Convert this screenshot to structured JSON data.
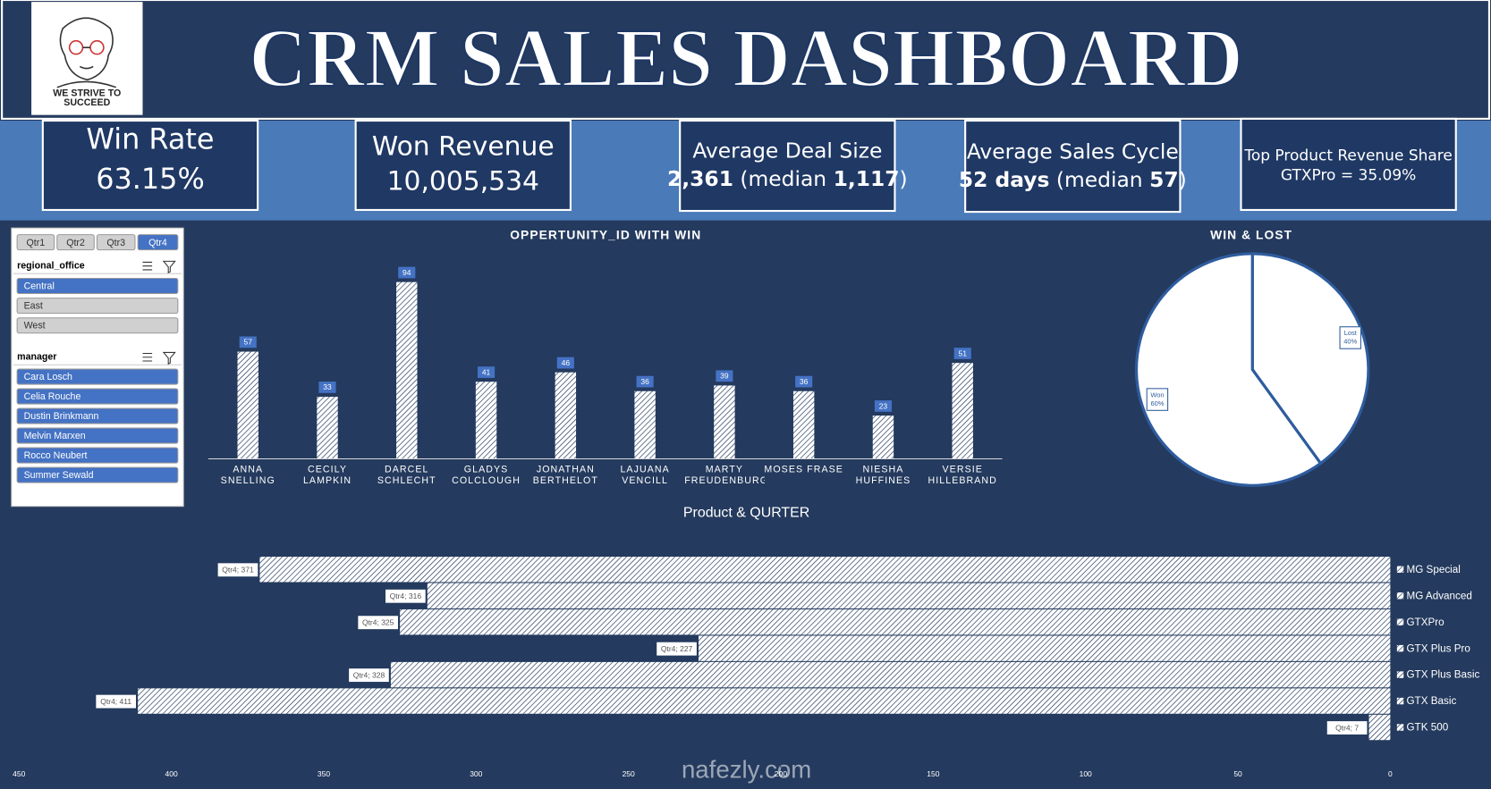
{
  "header": {
    "title": "CRM SALES DASHBOARD",
    "logo_text": "WE STRIVE TO SUCCEED"
  },
  "kpis": [
    {
      "label": "Win Rate",
      "value": "63.15%"
    },
    {
      "label": "Won Revenue",
      "value": "10,005,534"
    },
    {
      "label": "Average Deal Size",
      "value_parts": [
        "2,361",
        " (median ",
        "1,117",
        ")"
      ]
    },
    {
      "label": "Average Sales Cycle",
      "value_parts": [
        "52 days",
        " (median ",
        "57",
        ")"
      ]
    },
    {
      "label": "Top Product Revenue Share",
      "value": "GTXPro = 35.09%"
    }
  ],
  "slicers": {
    "quarters": {
      "items": [
        "Qtr1",
        "Qtr2",
        "Qtr3",
        "Qtr4"
      ],
      "selected": [
        3
      ]
    },
    "regional_office": {
      "title": "regional_office",
      "items": [
        "Central",
        "East",
        "West"
      ],
      "selected": [
        0
      ]
    },
    "manager": {
      "title": "manager",
      "items": [
        "Cara Losch",
        "Celia Rouche",
        "Dustin Brinkmann",
        "Melvin Marxen",
        "Rocco Neubert",
        "Summer Sewald"
      ],
      "selected": [
        0,
        1,
        2,
        3,
        4,
        5
      ]
    }
  },
  "chart_data": [
    {
      "type": "bar",
      "title": "OPPERTUNITY_ID  WITH WIN",
      "categories": [
        "ANNA SNELLING",
        "CECILY LAMPKIN",
        "DARCEL SCHLECHT",
        "GLADYS COLCLOUGH",
        "JONATHAN BERTHELOT",
        "LAJUANA VENCILL",
        "MARTY FREUDENBURG",
        "MOSES FRASE",
        "NIESHA HUFFINES",
        "VERSIE HILLEBRAND"
      ],
      "values": [
        57,
        33,
        94,
        41,
        46,
        36,
        39,
        36,
        23,
        51
      ],
      "color": "#ffffff",
      "label_color": "#4472c4",
      "ylim": [
        0,
        100
      ]
    },
    {
      "type": "pie",
      "title": "WIN & LOST",
      "categories": [
        "Won",
        "Lost"
      ],
      "values": [
        60,
        40
      ],
      "value_labels": [
        "60%",
        "40%"
      ],
      "color": "#ffffff",
      "edge_color": "#2e5c9e"
    },
    {
      "type": "hbar",
      "title": "Product & QURTER",
      "categories": [
        "MG Special",
        "MG Advanced",
        "GTXPro",
        "GTX Plus Pro",
        "GTX Plus Basic",
        "GTX Basic",
        "GTK 500"
      ],
      "values": [
        371,
        316,
        325,
        227,
        328,
        411,
        7
      ],
      "value_labels": [
        "Qtr4; 371",
        "Qtr4; 316",
        "Qtr4; 325",
        "Qtr4; 227",
        "Qtr4; 328",
        "Qtr4; 411",
        "Qtr4; 7"
      ],
      "color": "#ffffff",
      "xlim": [
        0,
        450
      ],
      "x_reversed": true,
      "xticks": [
        0,
        50,
        100,
        150,
        200,
        250,
        300,
        350,
        400,
        450
      ]
    }
  ],
  "watermark": "nafezly.com"
}
